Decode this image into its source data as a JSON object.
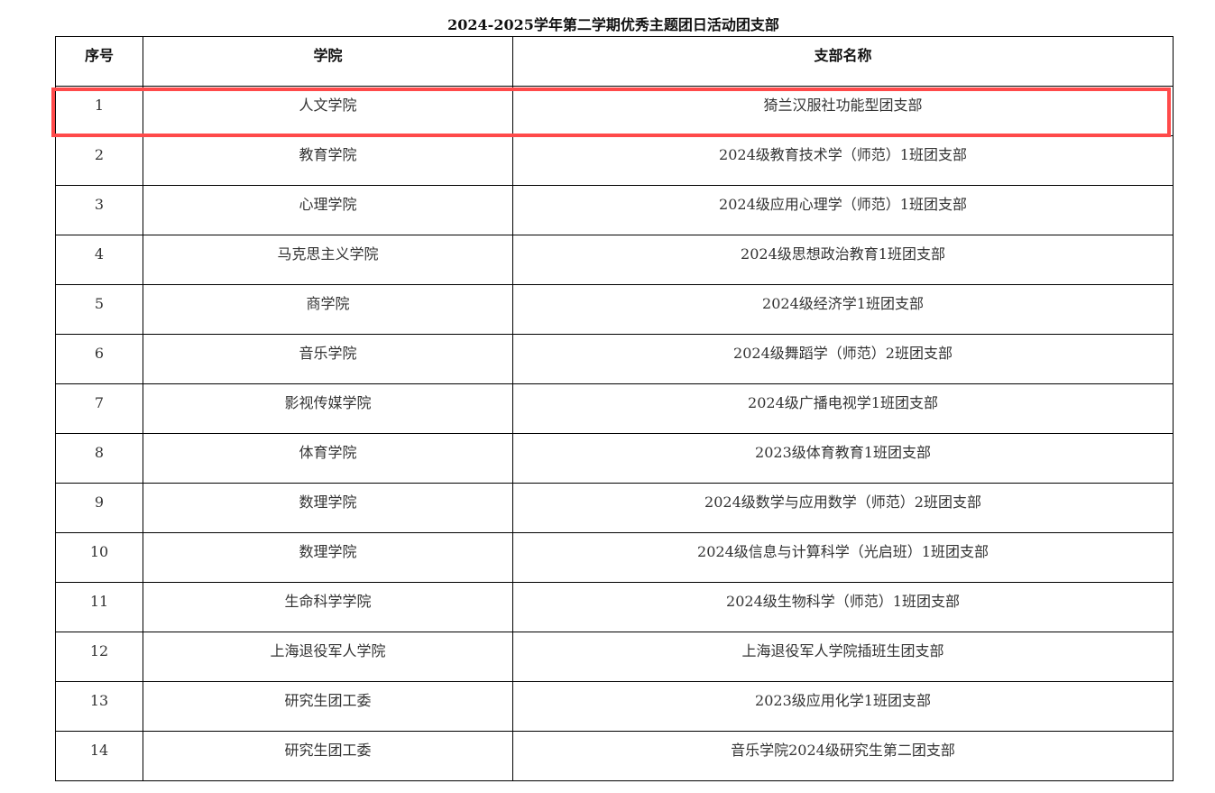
{
  "title": "2024-2025学年第二学期优秀主题团日活动团支部",
  "headers": [
    "序号",
    "学院",
    "支部名称"
  ],
  "rows": [
    [
      "1",
      "人文学院",
      "猗兰汉服社功能型团支部"
    ],
    [
      "2",
      "教育学院",
      "2024级教育技术学（师范）1班团支部"
    ],
    [
      "3",
      "心理学院",
      "2024级应用心理学（师范）1班团支部"
    ],
    [
      "4",
      "马克思主义学院",
      "2024级思想政治教育1班团支部"
    ],
    [
      "5",
      "商学院",
      "2024级经济学1班团支部"
    ],
    [
      "6",
      "音乐学院",
      "2024级舞蹈学（师范）2班团支部"
    ],
    [
      "7",
      "影视传媒学院",
      "2024级广播电视学1班团支部"
    ],
    [
      "8",
      "体育学院",
      "2023级体育教育1班团支部"
    ],
    [
      "9",
      "数理学院",
      "2024级数学与应用数学（师范）2班团支部"
    ],
    [
      "10",
      "数理学院",
      "2024级信息与计算科学（光启班）1班团支部"
    ],
    [
      "11",
      "生命科学学院",
      "2024级生物科学（师范）1班团支部"
    ],
    [
      "12",
      "上海退役军人学院",
      "上海退役军人学院插班生团支部"
    ],
    [
      "13",
      "研究生团工委",
      "2023级应用化学1班团支部"
    ],
    [
      "14",
      "研究生团工委",
      "音乐学院2024级研究生第二团支部"
    ]
  ],
  "highlight": {
    "row": 1,
    "color": "#ff4a4a"
  }
}
